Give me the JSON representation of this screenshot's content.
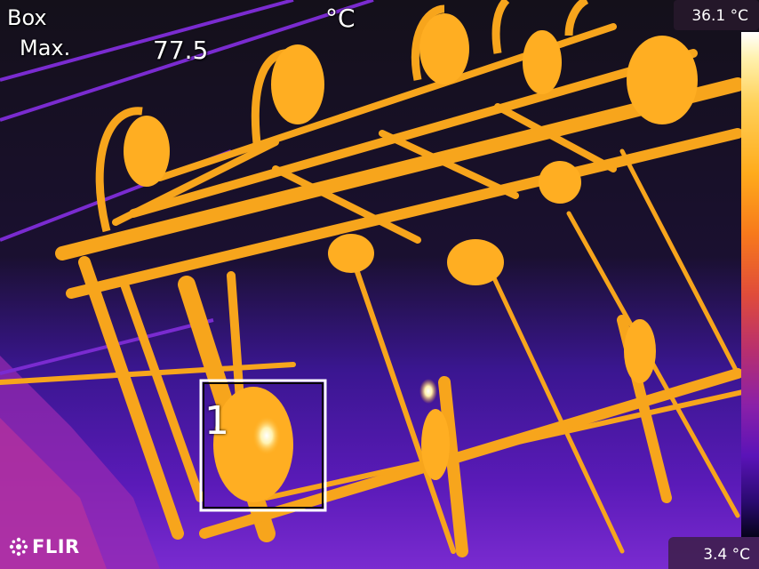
{
  "measurement": {
    "title": "Box",
    "label": "Max.",
    "value": "77.5",
    "unit": "°C"
  },
  "scale": {
    "max": "36.1 °C",
    "min": "3.4 °C"
  },
  "box_label": "1",
  "logo": "FLIR",
  "colors": {
    "hot": "#ffb020",
    "warm": "#f59a1c",
    "cool": "#7a2bd0",
    "cold": "#140c1e",
    "box_outline": "#ffffff"
  },
  "icons": [
    "flir-logo-icon"
  ]
}
